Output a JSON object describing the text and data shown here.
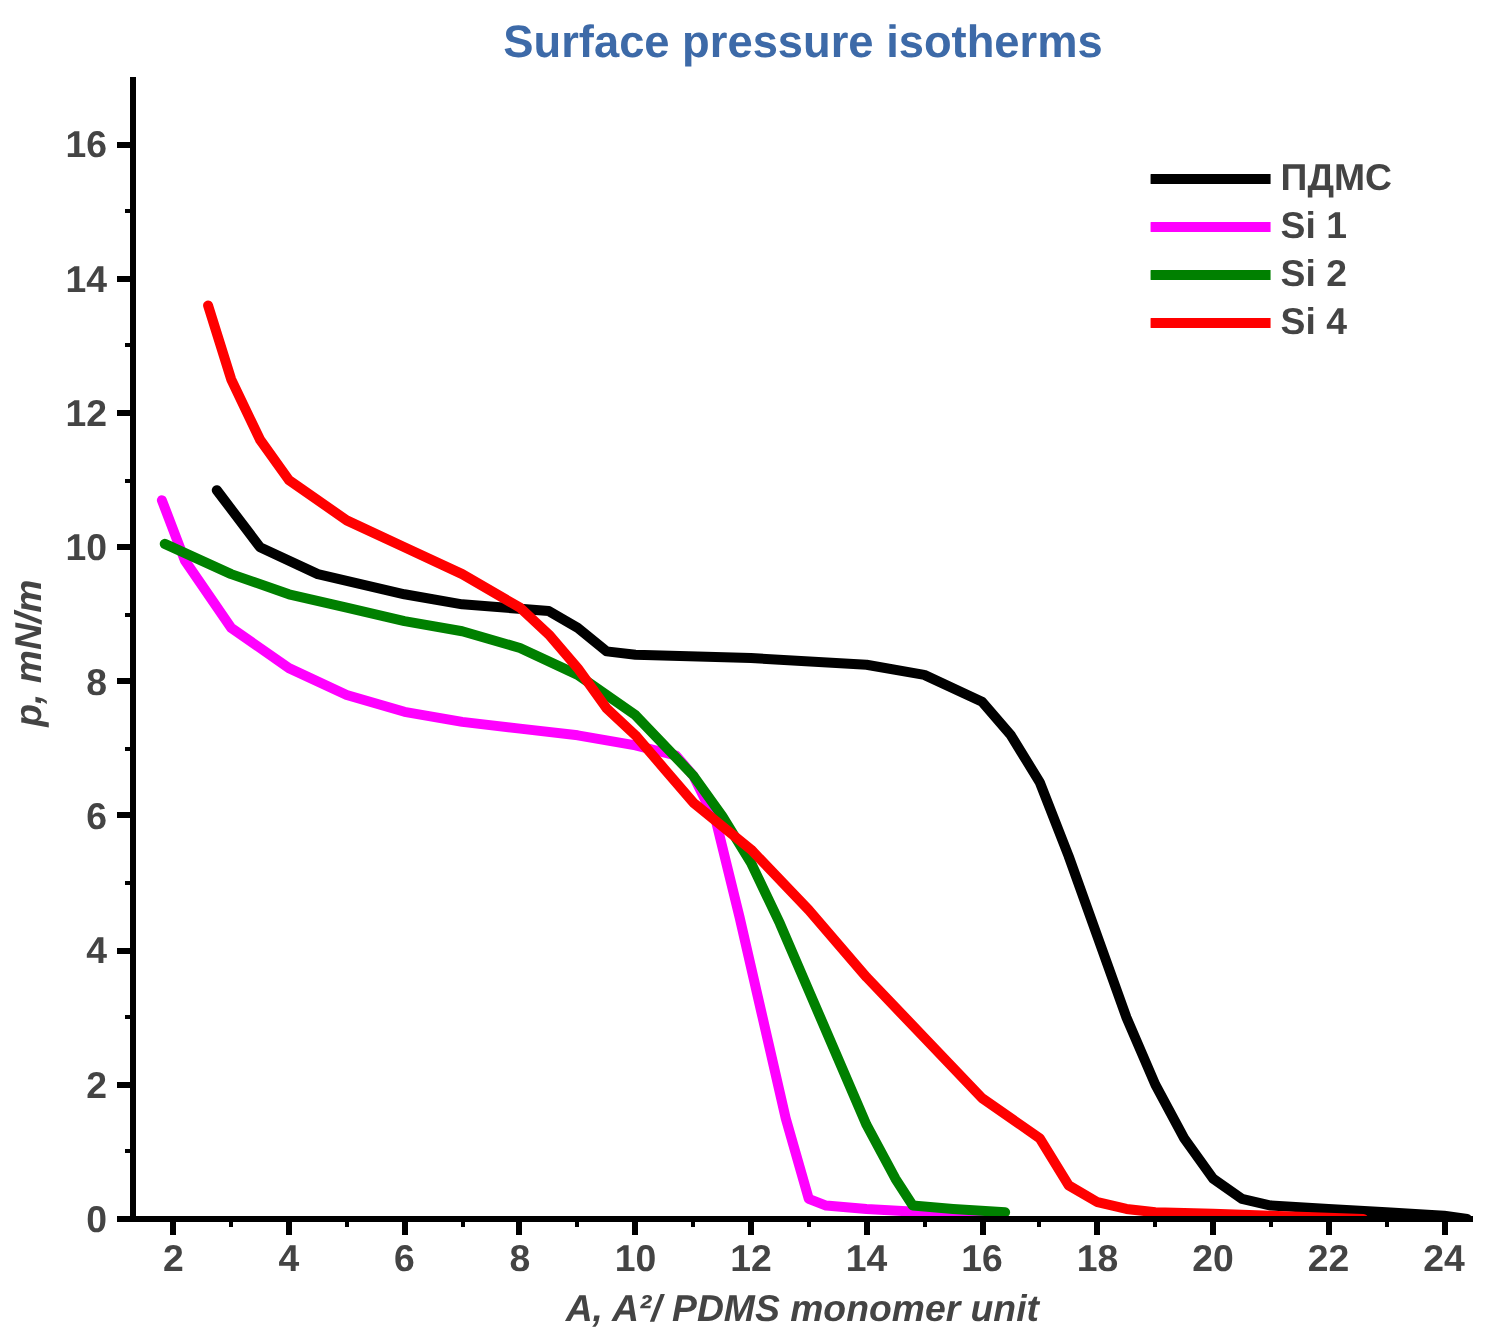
{
  "chart_data": {
    "type": "line",
    "title": "Surface pressure isotherms",
    "xlabel": "A, A²/ PDMS monomer unit",
    "ylabel": "p,  mN/m",
    "xlim": [
      1.3,
      24.5
    ],
    "ylim": [
      0,
      17
    ],
    "xticks": [
      2,
      {
        "value": 3,
        "label": null
      },
      4,
      {
        "value": 5,
        "label": null
      },
      6,
      {
        "value": 7,
        "label": null
      },
      8,
      {
        "value": 9,
        "label": null
      },
      10,
      {
        "value": 11,
        "label": null
      },
      12,
      {
        "value": 13,
        "label": null
      },
      14,
      {
        "value": 15,
        "label": null
      },
      16,
      {
        "value": 17,
        "label": null
      },
      18,
      {
        "value": 19,
        "label": null
      },
      20,
      {
        "value": 21,
        "label": null
      },
      22,
      {
        "value": 23,
        "label": null
      },
      24
    ],
    "yticks": [
      0,
      {
        "value": 1,
        "label": null
      },
      2,
      {
        "value": 3,
        "label": null
      },
      4,
      {
        "value": 5,
        "label": null
      },
      6,
      {
        "value": 7,
        "label": null
      },
      8,
      {
        "value": 9,
        "label": null
      },
      10,
      {
        "value": 11,
        "label": null
      },
      12,
      {
        "value": 13,
        "label": null
      },
      14,
      {
        "value": 15,
        "label": null
      },
      16
    ],
    "grid": false,
    "legend": "top right",
    "marker": "none",
    "line_style": "solid",
    "series": [
      {
        "name": "ПДМС",
        "color": "#000000",
        "x": [
          2.75,
          3.5,
          4.5,
          6,
          7,
          8.5,
          9,
          9.5,
          10,
          12,
          14,
          15,
          16,
          16.5,
          17,
          17.5,
          18,
          18.5,
          19,
          19.5,
          20,
          20.5,
          21,
          22,
          23,
          24,
          24.4
        ],
        "values": [
          10.85,
          10.0,
          9.6,
          9.3,
          9.15,
          9.05,
          8.8,
          8.45,
          8.4,
          8.35,
          8.25,
          8.1,
          7.7,
          7.2,
          6.5,
          5.4,
          4.2,
          3.0,
          2.0,
          1.2,
          0.6,
          0.3,
          0.2,
          0.15,
          0.1,
          0.05,
          0.0
        ]
      },
      {
        "name": "Si 1",
        "color": "#ff00ff",
        "x": [
          1.8,
          2.2,
          3,
          4,
          5,
          6,
          7,
          8,
          9,
          10,
          10.7,
          11,
          11.4,
          11.8,
          12.2,
          12.6,
          13,
          13.3,
          14,
          15,
          16.3
        ],
        "values": [
          10.7,
          9.8,
          8.8,
          8.2,
          7.8,
          7.55,
          7.4,
          7.3,
          7.2,
          7.05,
          6.9,
          6.6,
          5.9,
          4.5,
          3.0,
          1.5,
          0.3,
          0.2,
          0.15,
          0.1,
          0.0
        ]
      },
      {
        "name": "Si 2",
        "color": "#008000",
        "x": [
          1.85,
          3,
          4,
          5,
          6,
          7,
          8,
          9,
          10,
          11,
          11.5,
          12,
          12.5,
          13,
          13.5,
          14,
          14.5,
          14.8,
          15.5,
          16.4
        ],
        "values": [
          10.05,
          9.6,
          9.3,
          9.1,
          8.9,
          8.75,
          8.5,
          8.1,
          7.5,
          6.6,
          6.0,
          5.3,
          4.4,
          3.4,
          2.4,
          1.4,
          0.6,
          0.2,
          0.15,
          0.1
        ]
      },
      {
        "name": "Si 4",
        "color": "#ff0000",
        "x": [
          2.6,
          3,
          3.5,
          4,
          5,
          6,
          7,
          8,
          8.5,
          9,
          9.5,
          10,
          10.5,
          11,
          12,
          13,
          14,
          15,
          16,
          17,
          17.5,
          18,
          18.5,
          19,
          20,
          21,
          22.6
        ],
        "values": [
          13.6,
          12.5,
          11.6,
          11.0,
          10.4,
          10.0,
          9.6,
          9.1,
          8.7,
          8.2,
          7.6,
          7.2,
          6.7,
          6.2,
          5.5,
          4.6,
          3.6,
          2.7,
          1.8,
          1.2,
          0.5,
          0.25,
          0.15,
          0.1,
          0.08,
          0.05,
          0.0
        ]
      }
    ]
  }
}
